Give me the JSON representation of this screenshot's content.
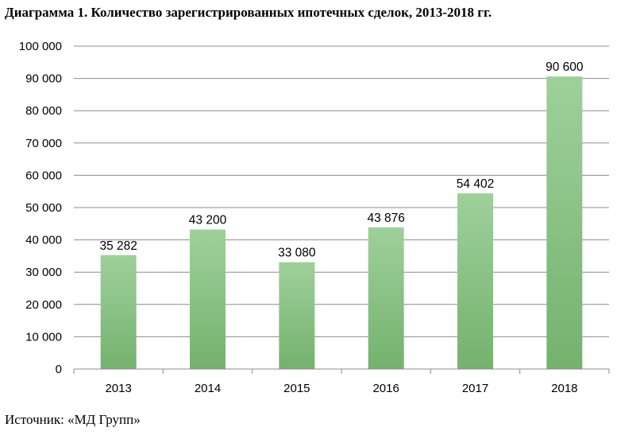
{
  "chart": {
    "title": "Диаграмма 1. Количество зарегистрированных ипотечных сделок, 2013-2018 гг.",
    "source": "Источник: «МД Групп»"
  },
  "colors": {
    "bar_top": "#9fd09b",
    "bar_bottom": "#74b26e",
    "grid": "#8c8c8c",
    "axis": "#8c8c8c"
  },
  "chart_data": {
    "type": "bar",
    "title": "Диаграмма 1. Количество зарегистрированных ипотечных сделок, 2013-2018 гг.",
    "categories": [
      "2013",
      "2014",
      "2015",
      "2016",
      "2017",
      "2018"
    ],
    "values": [
      35282,
      43200,
      33080,
      43876,
      54402,
      90600
    ],
    "data_labels": [
      "35 282",
      "43 200",
      "33 080",
      "43 876",
      "54 402",
      "90 600"
    ],
    "y_ticks": [
      0,
      10000,
      20000,
      30000,
      40000,
      50000,
      60000,
      70000,
      80000,
      90000,
      100000
    ],
    "y_tick_labels": [
      "0",
      "10 000",
      "20 000",
      "30 000",
      "40 000",
      "50 000",
      "60 000",
      "70 000",
      "80 000",
      "90 000",
      "100 000"
    ],
    "ylim": [
      0,
      100000
    ],
    "xlabel": "",
    "ylabel": "",
    "grid": true,
    "legend": "none"
  }
}
